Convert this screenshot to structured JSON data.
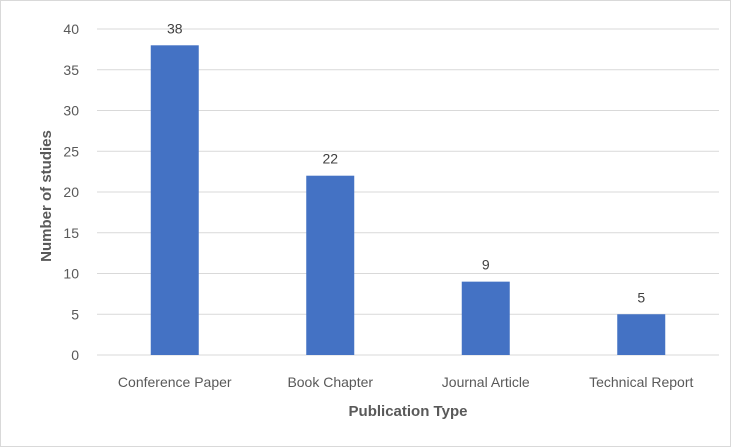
{
  "chart_data": {
    "type": "bar",
    "categories": [
      "Conference Paper",
      "Book Chapter",
      "Journal Article",
      "Technical Report"
    ],
    "values": [
      38,
      22,
      9,
      5
    ],
    "title": "",
    "xlabel": "Publication Type",
    "ylabel": "Number of studies",
    "ylim": [
      0,
      40
    ],
    "yticks": [
      0,
      5,
      10,
      15,
      20,
      25,
      30,
      35,
      40
    ],
    "grid": true,
    "data_labels": true,
    "bar_color": "#4472c4",
    "gridline_color": "#d9d9d9"
  }
}
